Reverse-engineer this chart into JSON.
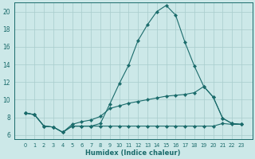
{
  "xlabel": "Humidex (Indice chaleur)",
  "x": [
    0,
    1,
    2,
    3,
    4,
    5,
    6,
    7,
    8,
    9,
    10,
    11,
    12,
    13,
    14,
    15,
    16,
    17,
    18,
    19,
    20,
    21,
    22,
    23
  ],
  "line1": [
    8.5,
    8.3,
    7.0,
    6.9,
    6.3,
    7.0,
    7.0,
    7.0,
    7.0,
    7.0,
    7.0,
    7.0,
    7.0,
    7.0,
    7.0,
    7.0,
    7.0,
    7.0,
    7.0,
    7.0,
    7.0,
    7.3,
    7.2,
    7.2
  ],
  "line2": [
    8.5,
    8.3,
    7.0,
    6.9,
    6.3,
    7.2,
    7.5,
    7.7,
    8.1,
    9.0,
    9.3,
    9.6,
    9.8,
    10.0,
    10.2,
    10.4,
    10.5,
    10.6,
    10.8,
    11.5,
    10.3,
    7.9,
    7.3,
    7.2
  ],
  "line3": [
    8.5,
    8.3,
    7.0,
    6.9,
    6.3,
    7.0,
    7.0,
    7.0,
    7.3,
    9.5,
    11.8,
    13.9,
    16.7,
    18.5,
    20.0,
    20.7,
    19.6,
    16.5,
    13.8,
    11.5,
    10.3,
    7.9,
    7.3,
    7.2
  ],
  "line_color": "#1a6b6b",
  "bg_color": "#cce8e8",
  "grid_color": "#a8cccc",
  "ylim": [
    5.5,
    21.0
  ],
  "yticks": [
    6,
    8,
    10,
    12,
    14,
    16,
    18,
    20
  ],
  "xticks": [
    0,
    1,
    2,
    3,
    4,
    5,
    6,
    7,
    8,
    9,
    10,
    11,
    12,
    13,
    14,
    15,
    16,
    17,
    18,
    19,
    20,
    21,
    22,
    23
  ]
}
